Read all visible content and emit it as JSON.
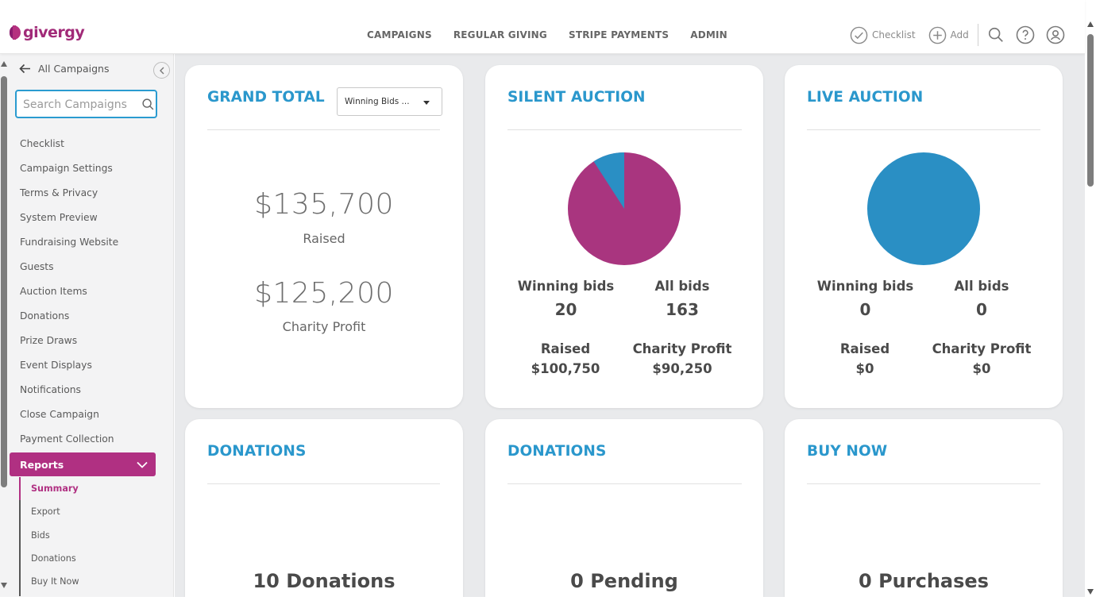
{
  "brand": {
    "name": "givergy",
    "colors": {
      "primary": "#b03082",
      "accent": "#2a97cc"
    }
  },
  "topnav": [
    "CAMPAIGNS",
    "REGULAR GIVING",
    "STRIPE PAYMENTS",
    "ADMIN"
  ],
  "topright": {
    "checklist": "Checklist",
    "add": "Add"
  },
  "sidebar": {
    "back_label": "All Campaigns",
    "search_placeholder": "Search Campaigns",
    "items": [
      "Checklist",
      "Campaign Settings",
      "Terms & Privacy",
      "System Preview",
      "Fundraising Website",
      "Guests",
      "Auction Items",
      "Donations",
      "Prize Draws",
      "Event Displays",
      "Notifications",
      "Close Campaign",
      "Payment Collection"
    ],
    "reports": {
      "label": "Reports",
      "subitems": [
        "Summary",
        "Export",
        "Bids",
        "Donations",
        "Buy It Now"
      ],
      "active": "Summary"
    }
  },
  "cards": {
    "grand_total": {
      "title": "GRAND TOTAL",
      "dropdown_value": "Winning Bids ...",
      "raised_amount": "$135,700",
      "raised_label": "Raised",
      "profit_amount": "$125,200",
      "profit_label": "Charity Profit"
    },
    "silent_auction": {
      "title": "SILENT AUCTION",
      "winning_bids_label": "Winning bids",
      "winning_bids": "20",
      "all_bids_label": "All bids",
      "all_bids": "163",
      "raised_label": "Raised",
      "raised": "$100,750",
      "profit_label": "Charity Profit",
      "profit": "$90,250",
      "pie": {
        "colors": [
          "#a9357f",
          "#2a8fc4"
        ]
      }
    },
    "live_auction": {
      "title": "LIVE AUCTION",
      "winning_bids_label": "Winning bids",
      "winning_bids": "0",
      "all_bids_label": "All bids",
      "all_bids": "0",
      "raised_label": "Raised",
      "raised": "$0",
      "profit_label": "Charity Profit",
      "profit": "$0",
      "pie": {
        "colors": [
          "#2a8fc4"
        ]
      }
    },
    "donations_1": {
      "title": "DONATIONS",
      "count": "10 Donations"
    },
    "donations_2": {
      "title": "DONATIONS",
      "count": "0 Pending"
    },
    "buy_now": {
      "title": "BUY NOW",
      "count": "0 Purchases"
    }
  }
}
